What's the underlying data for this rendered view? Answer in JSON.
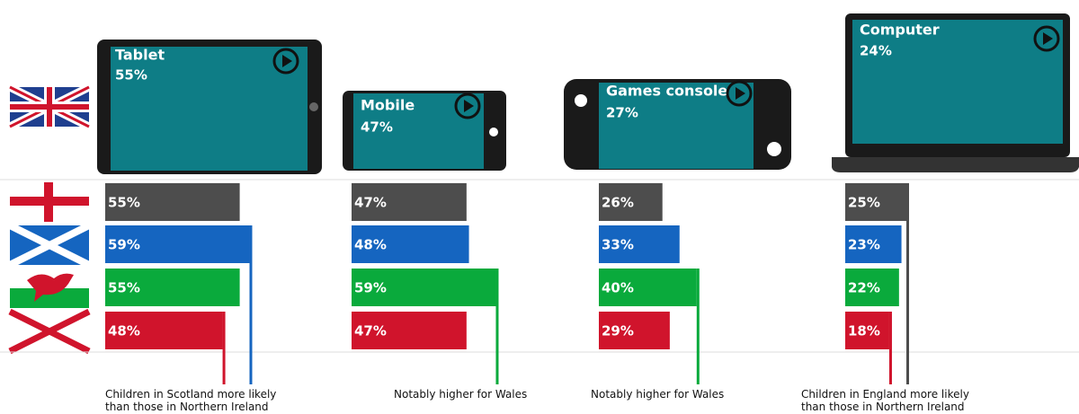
{
  "chart_data": [
    {
      "type": "bar",
      "title": "Tablet",
      "headline": {
        "value": 55,
        "label": "55%"
      },
      "categories": [
        null,
        null,
        null,
        null
      ],
      "values": [
        55,
        59,
        55,
        48
      ],
      "value_labels": [
        "55%",
        "59%",
        "55%",
        "48%"
      ],
      "colors": [
        "#4d4d4d",
        "#1565c0",
        "#0aaa3c",
        "#d0142c"
      ],
      "highlight": [
        1,
        3
      ],
      "note": "Children in Scotland more likely than those in Northern Ireland"
    },
    {
      "type": "bar",
      "title": "Mobile",
      "headline": {
        "value": 47,
        "label": "47%"
      },
      "categories": [
        null,
        null,
        null,
        null
      ],
      "values": [
        47,
        48,
        59,
        47
      ],
      "value_labels": [
        "47%",
        "48%",
        "59%",
        "47%"
      ],
      "colors": [
        "#4d4d4d",
        "#1565c0",
        "#0aaa3c",
        "#d0142c"
      ],
      "highlight": [
        2
      ],
      "note": "Notably higher for Wales"
    },
    {
      "type": "bar",
      "title": "Games console",
      "headline": {
        "value": 27,
        "label": "27%"
      },
      "categories": [
        null,
        null,
        null,
        null
      ],
      "values": [
        26,
        33,
        40,
        29
      ],
      "value_labels": [
        "26%",
        "33%",
        "40%",
        "29%"
      ],
      "colors": [
        "#4d4d4d",
        "#1565c0",
        "#0aaa3c",
        "#d0142c"
      ],
      "highlight": [
        2
      ],
      "note": "Notably higher for Wales"
    },
    {
      "type": "bar",
      "title": "Computer",
      "headline": {
        "value": 24,
        "label": "24%"
      },
      "categories": [
        null,
        null,
        null,
        null
      ],
      "values": [
        25,
        23,
        22,
        18
      ],
      "value_labels": [
        "25%",
        "23%",
        "22%",
        "18%"
      ],
      "colors": [
        "#4d4d4d",
        "#1565c0",
        "#0aaa3c",
        "#d0142c"
      ],
      "highlight": [
        0,
        3
      ],
      "note": "Children in England more likely than those in Northern Ireland"
    }
  ]
}
